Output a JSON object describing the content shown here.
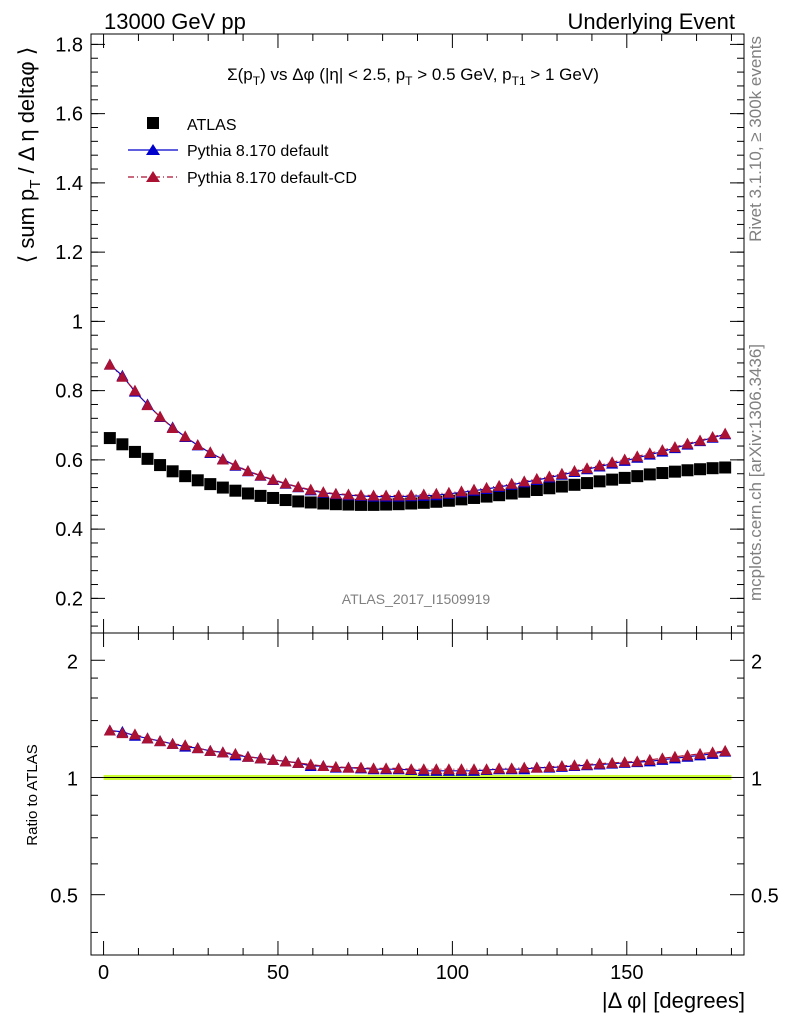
{
  "header": {
    "left": "13000 GeV pp",
    "right": "Underlying Event"
  },
  "side_labels": {
    "rivet": "Rivet 3.1.10, ≥ 300k events",
    "mcplots": "mcplots.cern.ch [arXiv:1306.3436]"
  },
  "plot_title": "Σ(p_T) vs Δφ (|η| < 2.5, p_T > 0.5 GeV, p_T1 > 1 GeV)",
  "analysis_id": "ATLAS_2017_I1509919",
  "colors": {
    "atlas": "#000000",
    "pythia_default": "#0000cc",
    "pythia_cd": "#aa1133",
    "band": "#ccff33"
  },
  "chart_data": [
    {
      "type": "scatter",
      "panel": "main",
      "ylabel": "⟨ sum p_T / Δ η deltaφ ⟩",
      "xlim": [
        -3.6,
        183.6
      ],
      "ylim": [
        0.1,
        1.83
      ],
      "yticks": [
        "0.2",
        "0.4",
        "0.6",
        "0.8",
        "1",
        "1.2",
        "1.4",
        "1.6",
        "1.8"
      ],
      "legend_placement": "top-left",
      "x": [
        1.8,
        5.4,
        9.0,
        12.6,
        16.2,
        19.8,
        23.4,
        27.0,
        30.6,
        34.2,
        37.8,
        41.4,
        45.0,
        48.6,
        52.2,
        55.8,
        59.4,
        63.0,
        66.6,
        70.2,
        73.8,
        77.4,
        81.0,
        84.6,
        88.2,
        91.8,
        95.4,
        99.0,
        102.6,
        106.2,
        109.8,
        113.4,
        117.0,
        120.6,
        124.2,
        127.8,
        131.4,
        135.0,
        138.6,
        142.2,
        145.8,
        149.4,
        153.0,
        156.6,
        160.2,
        163.8,
        167.4,
        171.0,
        174.6,
        178.2
      ],
      "series": [
        {
          "name": "ATLAS",
          "marker": "square",
          "values": [
            0.663,
            0.645,
            0.623,
            0.603,
            0.585,
            0.567,
            0.553,
            0.541,
            0.53,
            0.52,
            0.511,
            0.503,
            0.496,
            0.49,
            0.484,
            0.48,
            0.477,
            0.474,
            0.472,
            0.471,
            0.47,
            0.47,
            0.471,
            0.472,
            0.474,
            0.476,
            0.479,
            0.482,
            0.486,
            0.49,
            0.494,
            0.498,
            0.503,
            0.508,
            0.513,
            0.518,
            0.523,
            0.528,
            0.533,
            0.538,
            0.543,
            0.548,
            0.553,
            0.558,
            0.562,
            0.566,
            0.57,
            0.573,
            0.576,
            0.578
          ]
        },
        {
          "name": "Pythia 8.170 default",
          "marker": "triangle",
          "values": [
            0.875,
            0.843,
            0.797,
            0.76,
            0.724,
            0.694,
            0.666,
            0.642,
            0.62,
            0.602,
            0.583,
            0.567,
            0.554,
            0.542,
            0.531,
            0.521,
            0.512,
            0.505,
            0.501,
            0.498,
            0.496,
            0.494,
            0.494,
            0.494,
            0.495,
            0.496,
            0.498,
            0.502,
            0.506,
            0.511,
            0.516,
            0.522,
            0.528,
            0.535,
            0.542,
            0.549,
            0.557,
            0.565,
            0.573,
            0.581,
            0.589,
            0.597,
            0.606,
            0.615,
            0.624,
            0.634,
            0.644,
            0.654,
            0.664,
            0.674
          ]
        },
        {
          "name": "Pythia 8.170 default-CD",
          "marker": "triangle",
          "values": [
            0.875,
            0.84,
            0.8,
            0.758,
            0.725,
            0.692,
            0.668,
            0.643,
            0.622,
            0.601,
            0.585,
            0.568,
            0.555,
            0.543,
            0.532,
            0.522,
            0.514,
            0.507,
            0.502,
            0.5,
            0.498,
            0.497,
            0.497,
            0.497,
            0.498,
            0.5,
            0.502,
            0.505,
            0.509,
            0.514,
            0.519,
            0.525,
            0.531,
            0.538,
            0.545,
            0.552,
            0.56,
            0.568,
            0.576,
            0.584,
            0.593,
            0.601,
            0.61,
            0.619,
            0.628,
            0.637,
            0.647,
            0.656,
            0.666,
            0.676
          ]
        }
      ]
    },
    {
      "type": "line",
      "panel": "ratio",
      "ylabel": "Ratio to ATLAS",
      "xlabel": "|Δ φ| [degrees]",
      "xlim": [
        -3.6,
        183.6
      ],
      "ylim": [
        0.35,
        2.35
      ],
      "yticks": [
        "0.5",
        "1",
        "2"
      ],
      "xticks": [
        "0",
        "50",
        "100",
        "150"
      ],
      "band": {
        "low": 0.985,
        "high": 1.015
      },
      "series": [
        {
          "name": "Pythia 8.170 default",
          "values": [
            1.32,
            1.31,
            1.28,
            1.26,
            1.24,
            1.22,
            1.2,
            1.19,
            1.17,
            1.16,
            1.14,
            1.13,
            1.12,
            1.11,
            1.1,
            1.09,
            1.07,
            1.07,
            1.06,
            1.06,
            1.055,
            1.05,
            1.05,
            1.05,
            1.045,
            1.04,
            1.04,
            1.04,
            1.04,
            1.04,
            1.045,
            1.05,
            1.05,
            1.05,
            1.06,
            1.06,
            1.065,
            1.07,
            1.075,
            1.08,
            1.085,
            1.09,
            1.095,
            1.1,
            1.11,
            1.12,
            1.13,
            1.14,
            1.15,
            1.165
          ]
        },
        {
          "name": "Pythia 8.170 default-CD",
          "values": [
            1.32,
            1.3,
            1.29,
            1.26,
            1.24,
            1.22,
            1.21,
            1.19,
            1.17,
            1.16,
            1.15,
            1.13,
            1.12,
            1.11,
            1.1,
            1.09,
            1.08,
            1.07,
            1.065,
            1.06,
            1.06,
            1.055,
            1.055,
            1.055,
            1.05,
            1.05,
            1.05,
            1.05,
            1.05,
            1.05,
            1.05,
            1.055,
            1.055,
            1.06,
            1.06,
            1.065,
            1.07,
            1.075,
            1.08,
            1.085,
            1.09,
            1.095,
            1.1,
            1.11,
            1.12,
            1.13,
            1.14,
            1.15,
            1.16,
            1.17
          ]
        }
      ]
    }
  ]
}
